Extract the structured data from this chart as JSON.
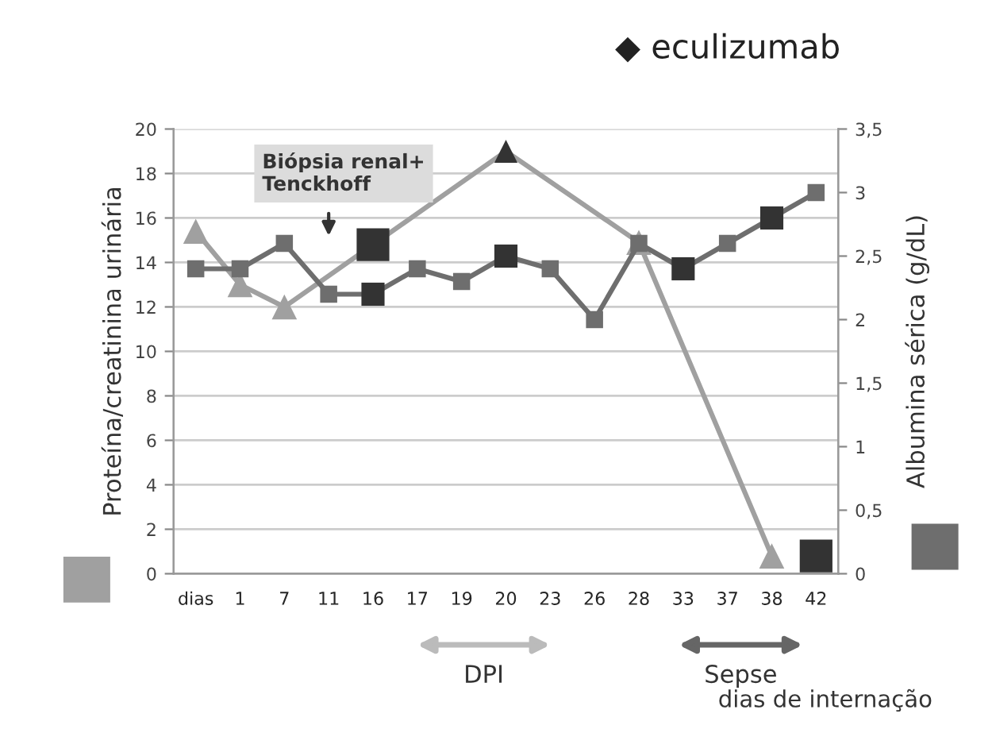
{
  "chart_data": {
    "type": "line",
    "categories": [
      "dias",
      "1",
      "7",
      "11",
      "16",
      "17",
      "19",
      "20",
      "23",
      "26",
      "28",
      "33",
      "37",
      "38",
      "42"
    ],
    "series": [
      {
        "color": "#a0a0a0",
        "marker": "triangle",
        "values": [
          15.4,
          13.0,
          12.0,
          null,
          null,
          null,
          null,
          19.0,
          null,
          null,
          14.9,
          null,
          null,
          0.8,
          null
        ],
        "colors": [
          "#a0a0a0",
          "#a0a0a0",
          "#a0a0a0",
          null,
          null,
          null,
          null,
          "#333333",
          null,
          null,
          "#a0a0a0",
          null,
          null,
          "#a0a0a0",
          null
        ]
      },
      {
        "color": "#6e6e6e",
        "marker": "square",
        "axis": "y2",
        "values": [
          2.4,
          2.4,
          2.6,
          2.2,
          2.2,
          2.4,
          2.3,
          2.5,
          2.4,
          2.0,
          2.6,
          2.4,
          2.6,
          2.8,
          3.0
        ],
        "colors": [
          "#6e6e6e",
          "#6e6e6e",
          "#6e6e6e",
          "#6e6e6e",
          "#333333",
          "#6e6e6e",
          "#6e6e6e",
          "#333333",
          "#6e6e6e",
          "#6e6e6e",
          "#6e6e6e",
          "#333333",
          "#6e6e6e",
          "#333333",
          "#6e6e6e"
        ]
      },
      {
        "type": "scatter",
        "color": "#333333",
        "marker": "square",
        "axis": "y2",
        "x": [
          "16",
          "42"
        ],
        "values": [
          2.59,
          0.14
        ]
      }
    ],
    "ylabel": "Proteína/creatinina urinária",
    "y2label": "Albumina sérica (g/dL)",
    "xlabel": "dias de internação",
    "ylim": [
      0,
      20
    ],
    "yticks": [
      0,
      2,
      4,
      6,
      8,
      10,
      12,
      14,
      16,
      18,
      20
    ],
    "y2lim": [
      0,
      3.5
    ],
    "y2ticks": [
      0,
      {
        "value": 0.5,
        "label": "0,5"
      },
      1,
      {
        "value": 1.5,
        "label": "1,5"
      },
      2,
      {
        "value": 2.5,
        "label": "2,5"
      },
      3,
      {
        "value": 3.5,
        "label": "3,5"
      }
    ],
    "grid": "y",
    "annotations": [
      "◆ eculizumab",
      "Biópsia renal+\nTenckhoff",
      "DPI",
      "Sepse"
    ]
  }
}
